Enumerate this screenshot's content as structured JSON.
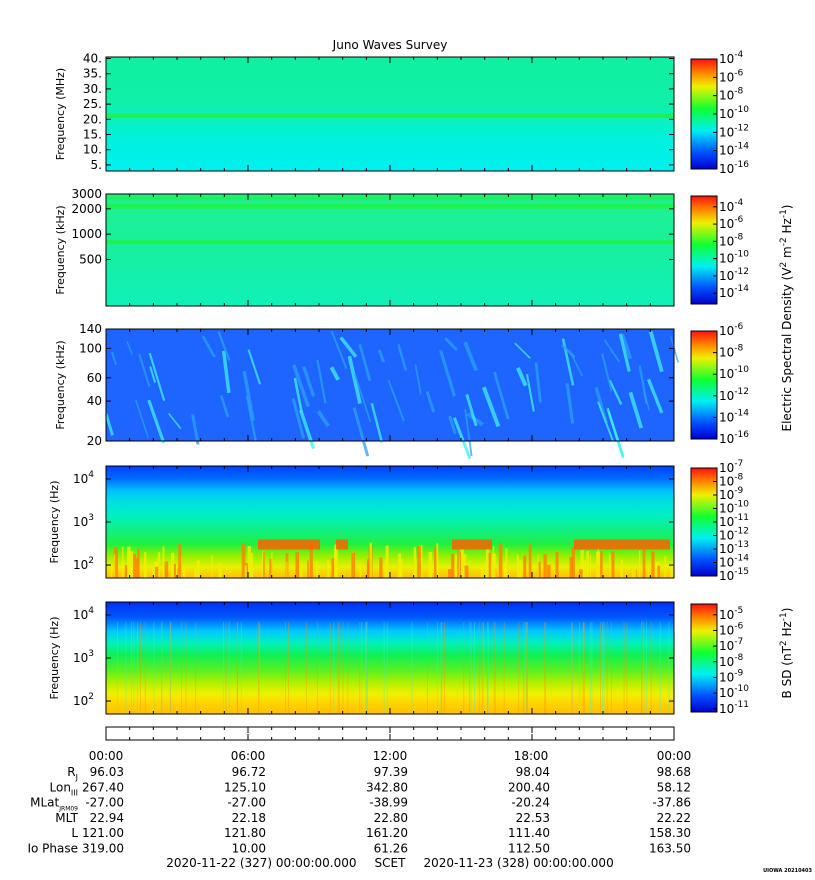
{
  "title": "Juno Waves Survey",
  "watermark": "UIOWA 20210403",
  "colors": {
    "deep_blue": "#0000d0",
    "blue": "#0050ff",
    "cyan": "#00f0f0",
    "green": "#10ff30",
    "yellow": "#f0f000",
    "orange": "#ff8000",
    "red": "#ff1010"
  },
  "panels": [
    {
      "id": "mhz",
      "ylabel": "Frequency (MHz)",
      "scale": "linear",
      "ylim": [
        3,
        40.5
      ],
      "yticks": [
        {
          "v": 40,
          "t": "40."
        },
        {
          "v": 35,
          "t": "35."
        },
        {
          "v": 30,
          "t": "30."
        },
        {
          "v": 25,
          "t": "25."
        },
        {
          "v": 20,
          "t": "20."
        },
        {
          "v": 15,
          "t": "15."
        },
        {
          "v": 10,
          "t": "10."
        },
        {
          "v": 5,
          "t": "5."
        }
      ],
      "colorbar": {
        "ticks": [
          {
            "e": "-4",
            "f": 0.0
          },
          {
            "e": "-6",
            "f": 0.167
          },
          {
            "e": "-8",
            "f": 0.333
          },
          {
            "e": "-10",
            "f": 0.5
          },
          {
            "e": "-12",
            "f": 0.667
          },
          {
            "e": "-14",
            "f": 0.833
          },
          {
            "e": "-16",
            "f": 1.0
          }
        ]
      },
      "bands": [
        {
          "lo": 20.5,
          "hi": 22.0,
          "level": 0.45
        }
      ]
    },
    {
      "id": "khz",
      "ylabel": "Frequency (kHz)",
      "scale": "log",
      "ylim": [
        140,
        3000
      ],
      "yticks": [
        {
          "v": 3000,
          "t": "3000"
        },
        {
          "v": 2000,
          "t": "2000"
        },
        {
          "v": 1000,
          "t": "1000"
        },
        {
          "v": 500,
          "t": "500"
        }
      ],
      "colorbar": {
        "ticks": [
          {
            "e": "-4",
            "f": 0.1
          },
          {
            "e": "-6",
            "f": 0.26
          },
          {
            "e": "-8",
            "f": 0.42
          },
          {
            "e": "-10",
            "f": 0.58
          },
          {
            "e": "-12",
            "f": 0.74
          },
          {
            "e": "-14",
            "f": 0.9
          }
        ]
      },
      "bands": [
        {
          "lo": 2000,
          "hi": 2300,
          "level": 0.45
        },
        {
          "lo": 760,
          "hi": 850,
          "level": 0.45
        },
        {
          "lo": 2600,
          "hi": 2800,
          "level": 0.5
        }
      ]
    },
    {
      "id": "khz-low",
      "ylabel": "Frequency (kHz)",
      "scale": "log",
      "ylim": [
        20,
        140
      ],
      "yticks": [
        {
          "v": 140,
          "t": "140"
        },
        {
          "v": 100,
          "t": "100"
        },
        {
          "v": 60,
          "t": "60"
        },
        {
          "v": 40,
          "t": "40"
        },
        {
          "v": 20,
          "t": "20"
        }
      ],
      "colorbar": {
        "ticks": [
          {
            "e": "-6",
            "f": 0.0
          },
          {
            "e": "-8",
            "f": 0.2
          },
          {
            "e": "-10",
            "f": 0.4
          },
          {
            "e": "-12",
            "f": 0.6
          },
          {
            "e": "-14",
            "f": 0.8
          },
          {
            "e": "-16",
            "f": 1.0
          }
        ]
      }
    },
    {
      "id": "hz-e",
      "ylabel": "Frequency (Hz)",
      "scale": "log",
      "ylim": [
        50,
        20000
      ],
      "yticks": [
        {
          "v": 10000,
          "t": "10",
          "e": "4"
        },
        {
          "v": 1000,
          "t": "10",
          "e": "3"
        },
        {
          "v": 100,
          "t": "10",
          "e": "2"
        }
      ],
      "colorbar": {
        "ticks": [
          {
            "e": "-7",
            "f": 0.0
          },
          {
            "e": "-8",
            "f": 0.125
          },
          {
            "e": "-9",
            "f": 0.25
          },
          {
            "e": "-10",
            "f": 0.375
          },
          {
            "e": "-11",
            "f": 0.5
          },
          {
            "e": "-12",
            "f": 0.625
          },
          {
            "e": "-13",
            "f": 0.75
          },
          {
            "e": "-14",
            "f": 0.875
          },
          {
            "e": "-15",
            "f": 1.0
          }
        ]
      }
    },
    {
      "id": "hz-b",
      "ylabel": "Frequency (Hz)",
      "scale": "log",
      "ylim": [
        50,
        20000
      ],
      "yticks": [
        {
          "v": 10000,
          "t": "10",
          "e": "4"
        },
        {
          "v": 1000,
          "t": "10",
          "e": "3"
        },
        {
          "v": 100,
          "t": "10",
          "e": "2"
        }
      ],
      "colorbar": {
        "ticks": [
          {
            "e": "-5",
            "f": 0.1
          },
          {
            "e": "-6",
            "f": 0.245
          },
          {
            "e": "-7",
            "f": 0.39
          },
          {
            "e": "-8",
            "f": 0.535
          },
          {
            "e": "-9",
            "f": 0.68
          },
          {
            "e": "-10",
            "f": 0.825
          },
          {
            "e": "-11",
            "f": 0.97
          }
        ]
      }
    }
  ],
  "electric_colorbar_label": "Electric Spectral Density (V",
  "b_colorbar_label": "B SD (nT",
  "chart_data": {
    "type": "heatmap",
    "title": "Juno Waves Survey",
    "x_axis": {
      "times": [
        "00:00",
        "06:00",
        "12:00",
        "18:00",
        "00:00"
      ],
      "start": "2020-11-22 (327) 00:00:00.000",
      "label": "SCET",
      "end": "2020-11-23 (328) 00:00:00.000"
    },
    "ephemeris": [
      {
        "name": "R",
        "sub": "J",
        "values": [
          "96.03",
          "96.72",
          "97.39",
          "98.04",
          "98.68"
        ]
      },
      {
        "name": "Lon",
        "sub": "III",
        "values": [
          "267.40",
          "125.10",
          "342.80",
          "200.40",
          "58.12"
        ]
      },
      {
        "name": "MLat",
        "sub": "JRM09",
        "values": [
          "-27.00",
          "-27.00",
          "-38.99",
          "-20.24",
          "-37.86"
        ]
      },
      {
        "name": "MLT",
        "sub": "",
        "values": [
          "22.94",
          "22.18",
          "22.80",
          "22.53",
          "22.22"
        ]
      },
      {
        "name": "L",
        "sub": "",
        "values": [
          "121.00",
          "121.80",
          "161.20",
          "111.40",
          "158.30"
        ]
      },
      {
        "name": "Io Phase",
        "sub": "",
        "values": [
          "319.00",
          "10.00",
          "61.26",
          "112.50",
          "163.50"
        ]
      }
    ]
  }
}
